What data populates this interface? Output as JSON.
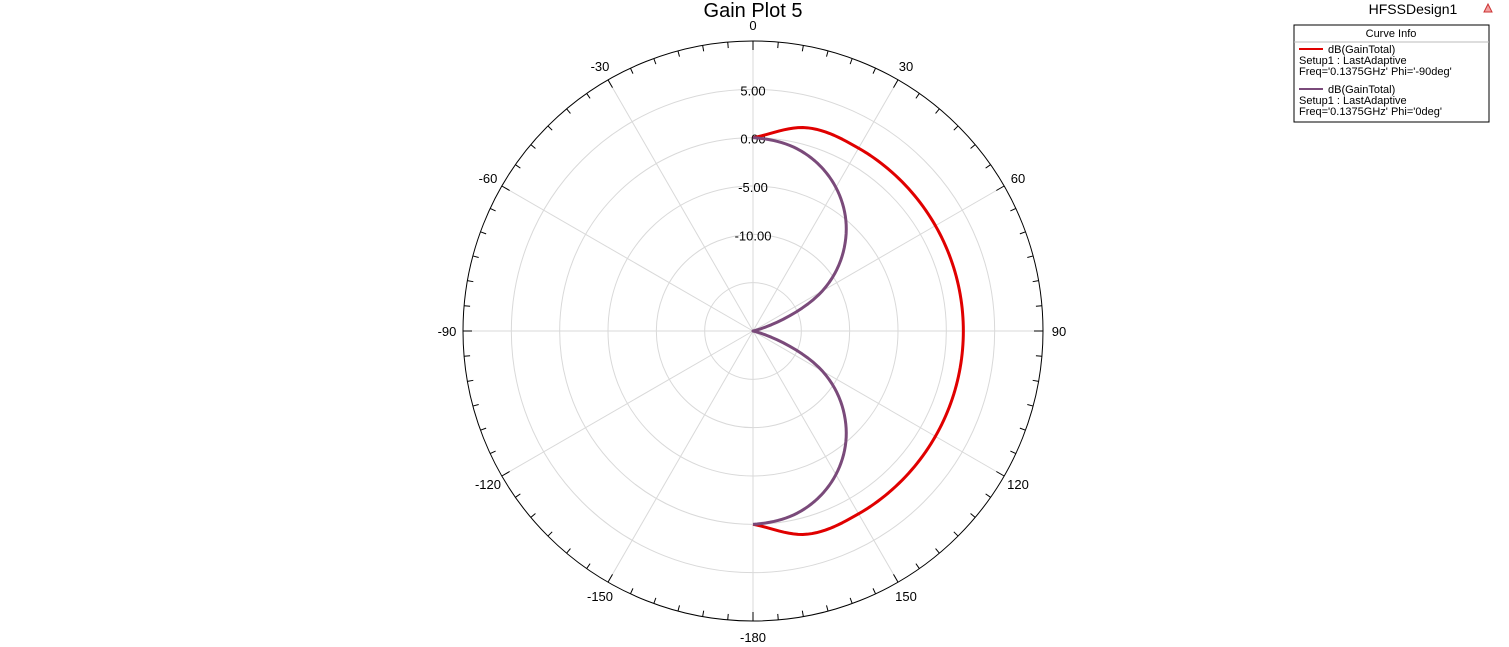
{
  "window": {
    "design_name": "HFSSDesign1"
  },
  "chart_data": {
    "type": "polar",
    "title": "Gain Plot 5",
    "r_range": [
      -20,
      10
    ],
    "radial_ticks": [
      "5.00",
      "0.00",
      "-5.00",
      "-10.00"
    ],
    "angle_ticks": [
      "0",
      "30",
      "60",
      "90",
      "120",
      "150",
      "-180",
      "-150",
      "-120",
      "-90",
      "-60",
      "-30"
    ],
    "grid": true,
    "legend": {
      "header": "Curve Info",
      "placement": "top-right",
      "entries": [
        {
          "name": "dB(GainTotal)",
          "line2": "Setup1 : LastAdaptive",
          "line3": "Freq='0.1375GHz' Phi='-90deg'"
        },
        {
          "name": "dB(GainTotal)",
          "line2": "Setup1 : LastAdaptive",
          "line3": "Freq='0.1375GHz' Phi='0deg'"
        }
      ]
    },
    "series": [
      {
        "name": "dB(GainTotal)",
        "color": "#e00000",
        "theta": [
          0,
          15,
          30,
          45,
          60,
          75,
          90,
          105,
          120,
          135,
          150,
          165,
          180
        ],
        "values": [
          0.0,
          1.76,
          1.84,
          1.82,
          1.79,
          1.77,
          1.76,
          1.77,
          1.79,
          1.82,
          1.84,
          1.76,
          0.0
        ]
      },
      {
        "name": "dB(GainTotal)",
        "color": "#7a4a7a",
        "theta": [
          0,
          15,
          30,
          45,
          60,
          75,
          90,
          105,
          120,
          135,
          150,
          165,
          180
        ],
        "values": [
          0.0,
          -0.73,
          -2.85,
          -6.43,
          -11.71,
          -19.5,
          -20.0,
          -19.5,
          -11.71,
          -6.43,
          -2.85,
          -0.73,
          0.0
        ]
      }
    ]
  }
}
